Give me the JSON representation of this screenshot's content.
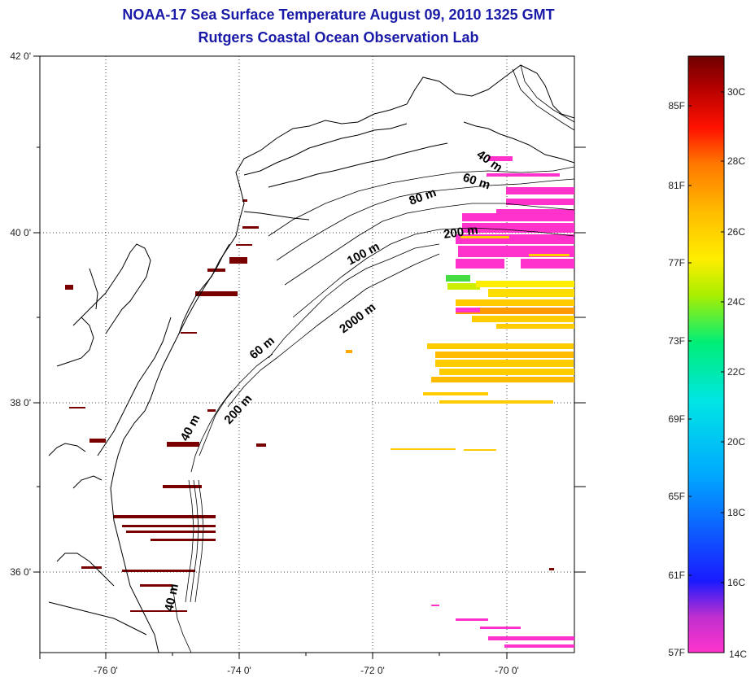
{
  "title": {
    "line1": "NOAA-17 Sea Surface Temperature August 09, 2010 1325 GMT",
    "line2": "Rutgers Coastal Ocean Observation Lab"
  },
  "map": {
    "longitude_ticks": [
      "-76 0'",
      "-74 0'",
      "-72 0'",
      "-70 0'"
    ],
    "latitude_ticks": [
      "42 0'",
      "40 0'",
      "38 0'",
      "36 0'"
    ],
    "lon_range": [
      -77,
      -69
    ],
    "lat_range": [
      35,
      42
    ],
    "grid": "dotted",
    "isobath_labels": [
      "40 m",
      "60 m",
      "80 m",
      "100 m",
      "200 m",
      "2000 m",
      "60 m",
      "200 m",
      "40 m",
      "40 m"
    ]
  },
  "colorbar": {
    "fahrenheit_labels": [
      "85F",
      "81F",
      "77F",
      "73F",
      "69F",
      "65F",
      "61F",
      "57F"
    ],
    "celsius_labels": [
      "30C",
      "28C",
      "26C",
      "24C",
      "22C",
      "20C",
      "18C",
      "16C",
      "14C"
    ],
    "range_c": [
      14,
      31
    ],
    "colors": [
      "#ff33cc",
      "#7a2bd6",
      "#1a1aff",
      "#00aaff",
      "#00e5e5",
      "#00ee77",
      "#aaee00",
      "#ffee00",
      "#ffbb00",
      "#ff7700",
      "#ff1100",
      "#b00000",
      "#6e0000"
    ]
  },
  "colors": {
    "title": "#1a1aa8",
    "coast": "#000000",
    "warm_sst": "#ffcc00",
    "cool_sst": "#ff33cc",
    "nearshore_sst": "#7a0000"
  }
}
